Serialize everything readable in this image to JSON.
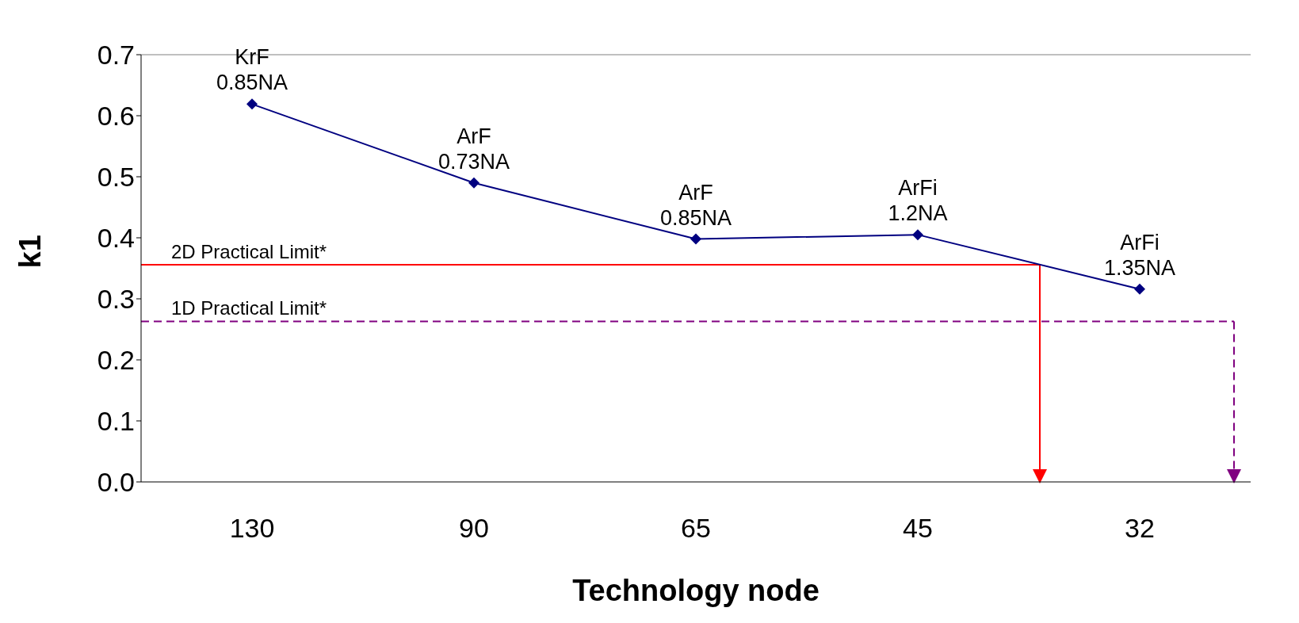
{
  "chart_data": {
    "type": "line",
    "xlabel": "Technology node",
    "ylabel": "k1",
    "categories": [
      "130",
      "90",
      "65",
      "45",
      "32"
    ],
    "series": [
      {
        "color": "#000080",
        "values": [
          0.619,
          0.49,
          0.398,
          0.405,
          0.316
        ]
      }
    ],
    "marker": "diamond",
    "line_style": "solid",
    "grid": false,
    "ylim": [
      0,
      0.7
    ],
    "yticks": [
      {
        "value": 0,
        "label": "0.0"
      },
      0.1,
      0.2,
      0.3,
      0.4,
      0.5,
      0.6,
      0.7
    ],
    "ref_lines": [
      {
        "axis": "y",
        "value": 0.356,
        "label": "2D Practical Limit*",
        "color": "#ff0000",
        "line_style": "solid"
      },
      {
        "axis": "y",
        "value": 0.263,
        "label": "1D Practical Limit*",
        "color": "#800080",
        "line_style": "dashed"
      }
    ],
    "annotations": [
      {
        "text": "KrF\n0.85NA",
        "x": "130",
        "y": 0.619
      },
      {
        "text": "ArF\n0.73NA",
        "x": "90",
        "y": 0.49
      },
      {
        "text": "ArF\n0.85NA",
        "x": "65",
        "y": 0.398
      },
      {
        "text": "ArFi\n1.2NA",
        "x": "45",
        "y": 0.405
      },
      {
        "text": "ArFi\n1.35NA",
        "x": "32",
        "y": 0.316
      }
    ]
  }
}
